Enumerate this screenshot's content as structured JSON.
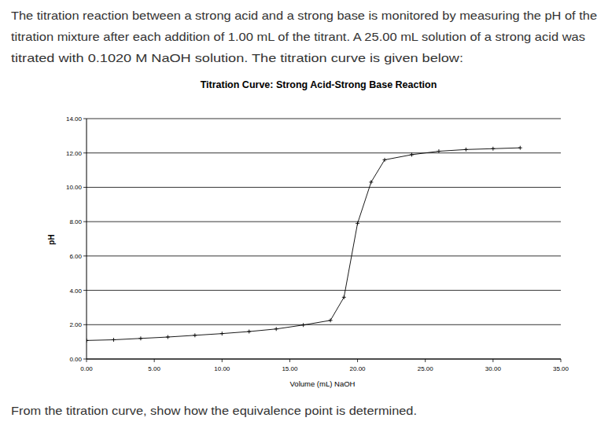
{
  "intro": [
    "The titration reaction between a strong acid and a strong base is monitored by measuring the pH of the",
    "titration mixture after each addition of 1.00 mL of the titrant.  A 25.00 mL solution of a strong acid was",
    "titrated with 0.1020 M NaOH solution.  The titration curve is given below:"
  ],
  "chart_data": {
    "type": "line",
    "title": "Titration Curve:  Strong Acid-Strong Base Reaction",
    "x_label": "Volume (mL) NaOH",
    "y_label": "pH",
    "x": [
      0,
      2,
      4,
      6,
      8,
      10,
      12,
      14,
      16,
      18,
      19,
      20,
      21,
      22,
      24,
      26,
      28,
      30,
      32
    ],
    "values": [
      1.08,
      1.12,
      1.2,
      1.28,
      1.38,
      1.48,
      1.6,
      1.75,
      1.98,
      2.25,
      3.6,
      7.9,
      10.3,
      11.6,
      11.9,
      12.1,
      12.2,
      12.25,
      12.3
    ],
    "color": "#000000",
    "marker": "plus",
    "line_style": "solid",
    "grid": true,
    "xlim": [
      0,
      35
    ],
    "xticks": [
      {
        "value": 0,
        "label": "0.00"
      },
      {
        "value": 5,
        "label": "5.00"
      },
      {
        "value": 10,
        "label": "10.00"
      },
      {
        "value": 15,
        "label": "15.00"
      },
      {
        "value": 20,
        "label": "20.00"
      },
      {
        "value": 25,
        "label": "25.00"
      },
      {
        "value": 30,
        "label": "30.00"
      },
      {
        "value": 35,
        "label": "35.00"
      }
    ],
    "ylim": [
      0,
      14
    ],
    "yticks": [
      {
        "value": 0,
        "label": "0.00"
      },
      {
        "value": 2,
        "label": "2.00"
      },
      {
        "value": 4,
        "label": "4.00"
      },
      {
        "value": 6,
        "label": "6.00"
      },
      {
        "value": 8,
        "label": "8.00"
      },
      {
        "value": 10,
        "label": "10.00"
      },
      {
        "value": 12,
        "label": "12.00"
      },
      {
        "value": 14,
        "label": "14.00"
      }
    ]
  },
  "question": "From the titration curve, show how the equivalence point is determined."
}
